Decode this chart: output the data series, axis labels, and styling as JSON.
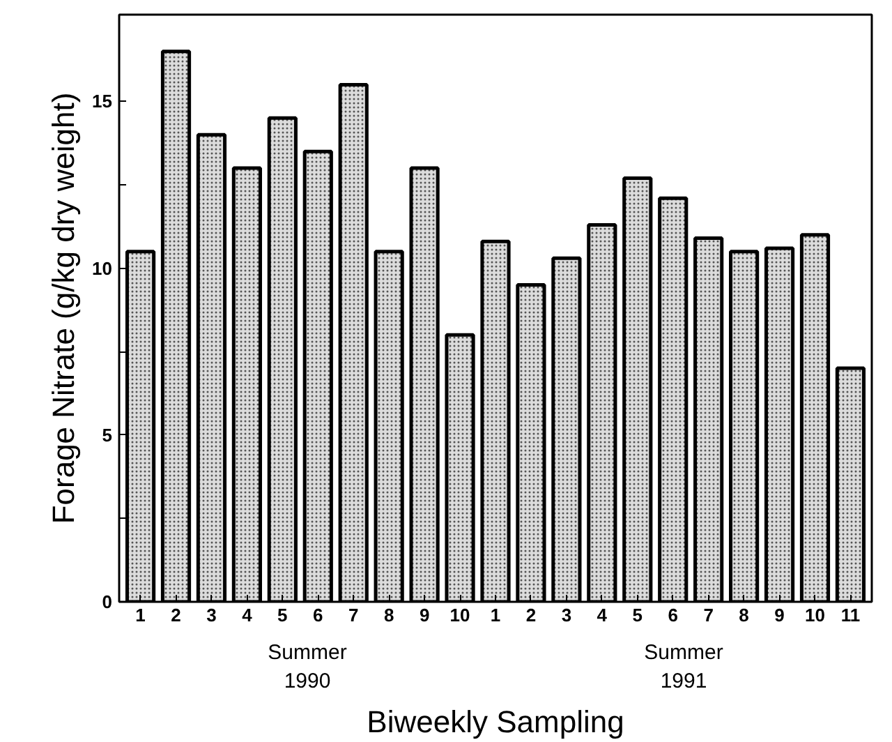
{
  "chart_data": {
    "type": "bar",
    "xlabel": "Biweekly Sampling",
    "ylabel": "Forage Nitrate (g/kg dry weight)",
    "categories": [
      "1",
      "2",
      "3",
      "4",
      "5",
      "6",
      "7",
      "8",
      "9",
      "10",
      "1",
      "2",
      "3",
      "4",
      "5",
      "6",
      "7",
      "8",
      "9",
      "10",
      "11"
    ],
    "values": [
      10.5,
      16.5,
      14.0,
      13.0,
      14.5,
      13.5,
      15.5,
      10.5,
      13.0,
      8.0,
      10.8,
      9.5,
      10.3,
      11.3,
      12.7,
      12.1,
      10.9,
      10.5,
      10.6,
      11.0,
      7.0
    ],
    "color": "#dcdcdc",
    "ylim": [
      0,
      17.6
    ],
    "yticks": [
      0,
      {
        "value": 2.5,
        "label": null
      },
      5,
      {
        "value": 7.5,
        "label": null
      },
      10,
      {
        "value": 12.5,
        "label": null
      },
      15
    ],
    "annotations": [
      "Summer\n1990",
      "Summer\n1991"
    ],
    "grid": false
  }
}
